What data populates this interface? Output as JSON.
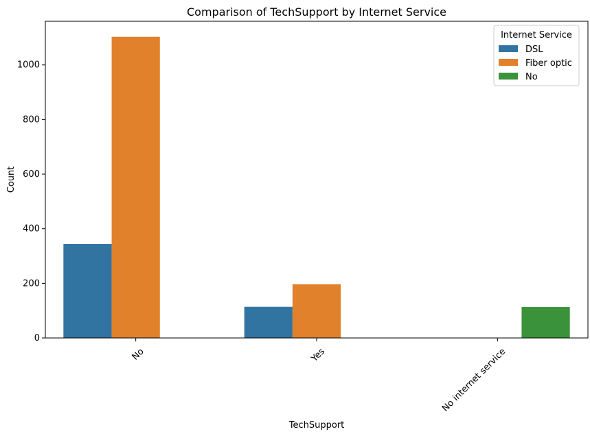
{
  "chart_data": {
    "type": "bar",
    "title": "Comparison of TechSupport by Internet Service",
    "xlabel": "TechSupport",
    "ylabel": "Count",
    "categories": [
      "No",
      "Yes",
      "No internet service"
    ],
    "ylim": [
      0,
      1160
    ],
    "yticks": [
      "0",
      "200",
      "400",
      "600",
      "800",
      "1000"
    ],
    "series": [
      {
        "name": "DSL",
        "values": [
          344,
          114,
          0
        ],
        "color": "#3274a1"
      },
      {
        "name": "Fiber optic",
        "values": [
          1103,
          197,
          0
        ],
        "color": "#e1812c"
      },
      {
        "name": "No",
        "values": [
          0,
          0,
          113
        ],
        "color": "#3a923a"
      }
    ],
    "legend": {
      "title": "Internet Service",
      "position": "top-right"
    },
    "grid": false
  }
}
